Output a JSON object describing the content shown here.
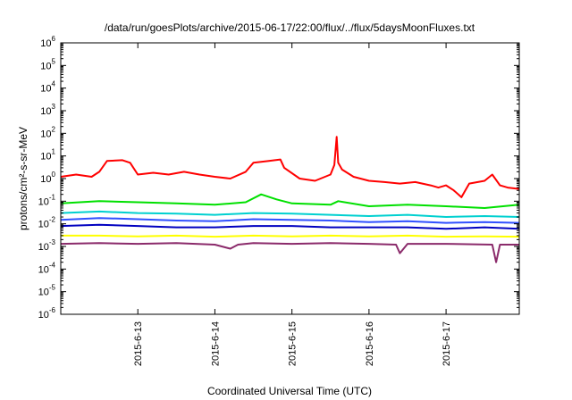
{
  "chart_data": {
    "type": "line",
    "title": "/data/run/goesPlots/archive/2015-06-17/22:00/flux/../flux/5daysMoonFluxes.txt",
    "xlabel": "Coordinated Universal Time (UTC)",
    "ylabel": "protons/cm²-s-sr-MeV",
    "xlim": [
      12.0,
      17.95
    ],
    "ylim_exponents": [
      -6,
      6
    ],
    "ylog": true,
    "y_tick_base": "10",
    "y_tick_exponents": [
      "-6",
      "-5",
      "-4",
      "-3",
      "-2",
      "-1",
      "0",
      "1",
      "2",
      "3",
      "4",
      "5",
      "6"
    ],
    "x_ticks": [
      {
        "x": 13,
        "label": "2015-6-13"
      },
      {
        "x": 14,
        "label": "2015-6-14"
      },
      {
        "x": 15,
        "label": "2015-6-15"
      },
      {
        "x": 16,
        "label": "2015-6-16"
      },
      {
        "x": 17,
        "label": "2015-6-17"
      }
    ],
    "grid": false,
    "legend": "none",
    "series": [
      {
        "color": "#ff0000",
        "x": [
          12.0,
          12.2,
          12.4,
          12.5,
          12.6,
          12.8,
          12.9,
          13.0,
          13.2,
          13.4,
          13.6,
          13.8,
          14.0,
          14.2,
          14.4,
          14.5,
          14.7,
          14.85,
          14.9,
          15.1,
          15.3,
          15.5,
          15.55,
          15.58,
          15.6,
          15.65,
          15.8,
          16.0,
          16.2,
          16.4,
          16.6,
          16.8,
          16.9,
          17.0,
          17.1,
          17.2,
          17.3,
          17.5,
          17.6,
          17.7,
          17.8,
          17.95
        ],
        "y": [
          1.2,
          1.5,
          1.2,
          2.0,
          6.0,
          6.5,
          5.0,
          1.5,
          1.8,
          1.5,
          2.0,
          1.5,
          1.2,
          1.0,
          2.0,
          5.0,
          6.0,
          7.0,
          3.0,
          1.0,
          0.8,
          1.5,
          4.0,
          70,
          5.0,
          2.5,
          1.2,
          0.8,
          0.7,
          0.6,
          0.7,
          0.5,
          0.4,
          0.5,
          0.3,
          0.15,
          0.6,
          0.8,
          1.5,
          0.5,
          0.4,
          0.35
        ]
      },
      {
        "color": "#00e000",
        "x": [
          12.0,
          12.5,
          13.0,
          13.5,
          14.0,
          14.4,
          14.6,
          14.8,
          15.0,
          15.5,
          15.6,
          16.0,
          16.5,
          17.0,
          17.5,
          17.95
        ],
        "y": [
          0.08,
          0.1,
          0.09,
          0.08,
          0.07,
          0.09,
          0.2,
          0.12,
          0.08,
          0.07,
          0.1,
          0.06,
          0.07,
          0.06,
          0.05,
          0.07
        ]
      },
      {
        "color": "#00d0d0",
        "x": [
          12.0,
          12.5,
          13.0,
          13.5,
          14.0,
          14.5,
          15.0,
          15.5,
          16.0,
          16.5,
          17.0,
          17.5,
          17.95
        ],
        "y": [
          0.03,
          0.035,
          0.03,
          0.028,
          0.025,
          0.03,
          0.028,
          0.025,
          0.022,
          0.025,
          0.02,
          0.022,
          0.02
        ]
      },
      {
        "color": "#3050ff",
        "x": [
          12.0,
          12.5,
          13.0,
          13.5,
          14.0,
          14.5,
          15.0,
          15.5,
          16.0,
          16.5,
          17.0,
          17.5,
          17.95
        ],
        "y": [
          0.015,
          0.018,
          0.016,
          0.014,
          0.013,
          0.016,
          0.015,
          0.014,
          0.012,
          0.013,
          0.011,
          0.012,
          0.011
        ]
      },
      {
        "color": "#0000c0",
        "x": [
          12.0,
          12.5,
          13.0,
          13.5,
          14.0,
          14.5,
          15.0,
          15.5,
          16.0,
          16.5,
          17.0,
          17.5,
          17.95
        ],
        "y": [
          0.008,
          0.009,
          0.008,
          0.007,
          0.007,
          0.008,
          0.008,
          0.007,
          0.007,
          0.007,
          0.006,
          0.007,
          0.006
        ]
      },
      {
        "color": "#ffff00",
        "x": [
          12.0,
          12.5,
          13.0,
          13.5,
          14.0,
          14.5,
          15.0,
          15.5,
          16.0,
          16.5,
          17.0,
          17.5,
          17.95
        ],
        "y": [
          0.003,
          0.003,
          0.0028,
          0.003,
          0.0027,
          0.003,
          0.0028,
          0.003,
          0.0028,
          0.003,
          0.0027,
          0.0028,
          0.0027
        ]
      },
      {
        "color": "#8b2b6b",
        "x": [
          12.0,
          12.5,
          13.0,
          13.5,
          14.0,
          14.2,
          14.3,
          14.5,
          15.0,
          15.5,
          16.0,
          16.35,
          16.4,
          16.5,
          17.0,
          17.6,
          17.65,
          17.7,
          17.95
        ],
        "y": [
          0.0013,
          0.0014,
          0.0013,
          0.0014,
          0.0012,
          0.0008,
          0.0012,
          0.0014,
          0.0013,
          0.0014,
          0.0013,
          0.0012,
          0.0005,
          0.0013,
          0.0013,
          0.0012,
          0.0002,
          0.0012,
          0.0012
        ]
      }
    ]
  }
}
